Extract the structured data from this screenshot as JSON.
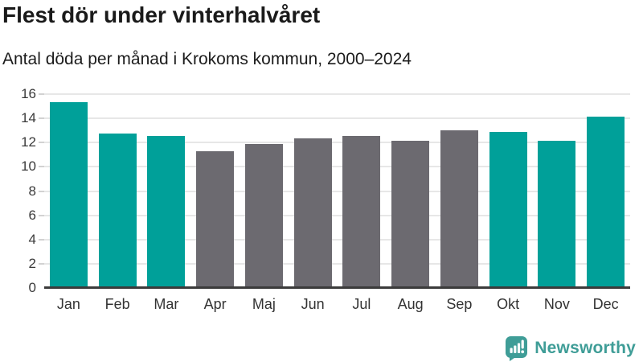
{
  "chart": {
    "title": "Flest dör under vinterhalvåret",
    "subtitle": "Antal döda per månad i Krokoms kommun, 2000–2024"
  },
  "chart_data": {
    "type": "bar",
    "categories": [
      "Jan",
      "Feb",
      "Mar",
      "Apr",
      "Maj",
      "Jun",
      "Jul",
      "Aug",
      "Sep",
      "Okt",
      "Nov",
      "Dec"
    ],
    "values": [
      15.3,
      12.65,
      12.5,
      11.2,
      11.8,
      12.25,
      12.5,
      12.1,
      12.95,
      12.8,
      12.1,
      14.05
    ],
    "highlighted_categories": [
      "Jan",
      "Feb",
      "Mar",
      "Okt",
      "Nov",
      "Dec"
    ],
    "colors": {
      "highlight": "#00a099",
      "base": "#6c6a70"
    },
    "title": "Flest dör under vinterhalvåret",
    "xlabel": "",
    "ylabel": "",
    "ylim": [
      0,
      16
    ],
    "ytick_step": 2,
    "grid": true,
    "legend": "none"
  },
  "footer": {
    "brand": "Newsworthy",
    "brand_color": "#3f9d97",
    "logo_icon": "speech-bubble-bar-chart"
  }
}
